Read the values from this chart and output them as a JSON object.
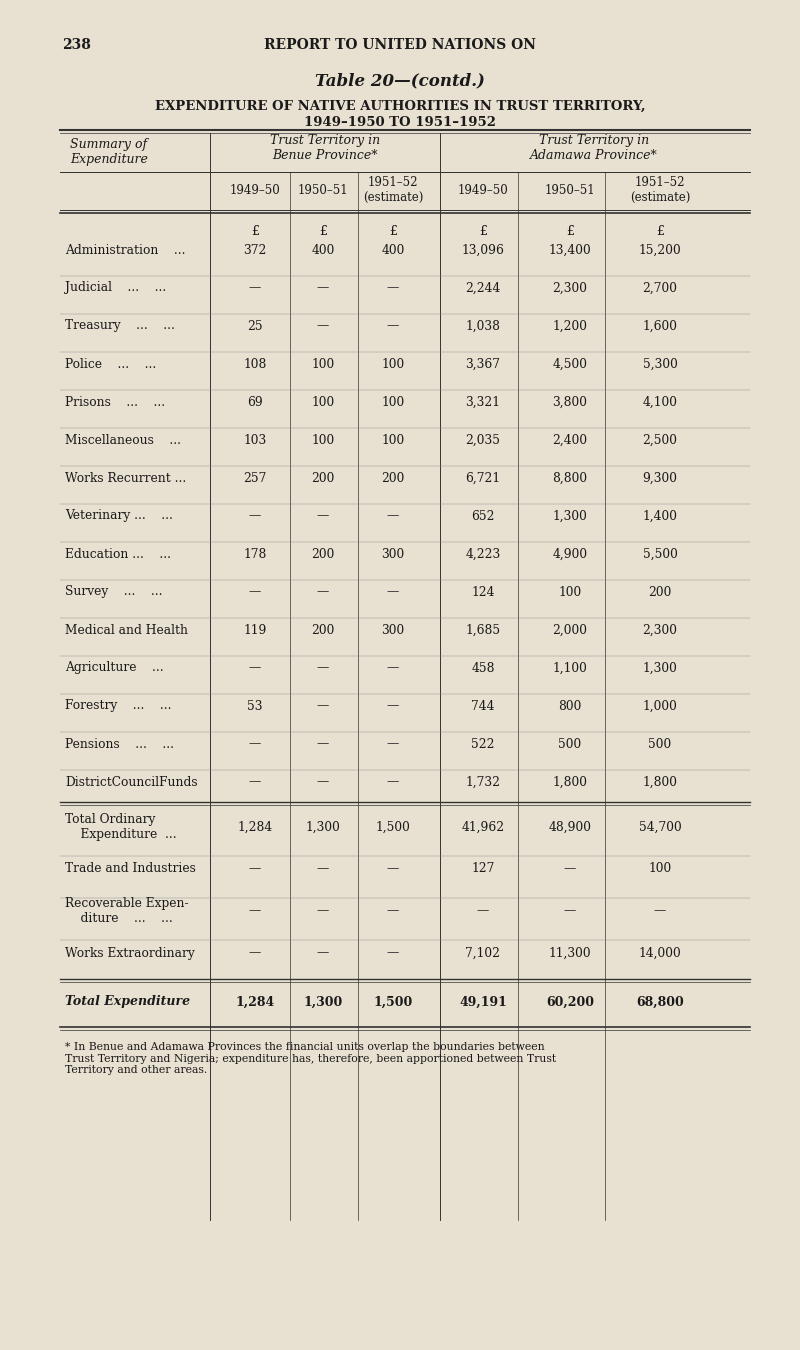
{
  "page_number": "238",
  "header_text": "REPORT TO UNITED NATIONS ON",
  "table_title": "Table 20—(contd.)",
  "subtitle1": "EXPENDITURE OF NATIVE AUTHORITIES IN TRUST TERRITORY,",
  "subtitle2": "1949–1950 TO 1951–1952",
  "col_group1": "Trust Territory in\nBenue Province*",
  "col_group2": "Trust Territory in\nAdamawa Province*",
  "row_header": "Summary of\nExpenditure",
  "col_years": [
    "1949–50",
    "1950–51",
    "1951–52\n(estimate)",
    "1949–50",
    "1950–51",
    "1951–52\n(estimate)"
  ],
  "currency_symbol": "£",
  "rows": [
    {
      "label": "Administration    ...",
      "dots": false,
      "b49": "372",
      "b50": "400",
      "b51": "400",
      "a49": "13,096",
      "a50": "13,400",
      "a51": "15,200"
    },
    {
      "label": "Judicial    ...    ...",
      "dots": false,
      "b49": "—",
      "b50": "—",
      "b51": "—",
      "a49": "2,244",
      "a50": "2,300",
      "a51": "2,700"
    },
    {
      "label": "Treasury    ...    ...",
      "dots": false,
      "b49": "25",
      "b50": "—",
      "b51": "—",
      "a49": "1,038",
      "a50": "1,200",
      "a51": "1,600"
    },
    {
      "label": "Police    ...    ...",
      "dots": false,
      "b49": "108",
      "b50": "100",
      "b51": "100",
      "a49": "3,367",
      "a50": "4,500",
      "a51": "5,300"
    },
    {
      "label": "Prisons    ...    ...",
      "dots": false,
      "b49": "69",
      "b50": "100",
      "b51": "100",
      "a49": "3,321",
      "a50": "3,800",
      "a51": "4,100"
    },
    {
      "label": "Miscellaneous    ...",
      "dots": false,
      "b49": "103",
      "b50": "100",
      "b51": "100",
      "a49": "2,035",
      "a50": "2,400",
      "a51": "2,500"
    },
    {
      "label": "Works Recurrent ...",
      "dots": false,
      "b49": "257",
      "b50": "200",
      "b51": "200",
      "a49": "6,721",
      "a50": "8,800",
      "a51": "9,300"
    },
    {
      "label": "Veterinary ...    ...",
      "dots": false,
      "b49": "—",
      "b50": "—",
      "b51": "—",
      "a49": "652",
      "a50": "1,300",
      "a51": "1,400"
    },
    {
      "label": "Education ...    ...",
      "dots": false,
      "b49": "178",
      "b50": "200",
      "b51": "300",
      "a49": "4,223",
      "a50": "4,900",
      "a51": "5,500"
    },
    {
      "label": "Survey    ...    ...",
      "dots": false,
      "b49": "—",
      "b50": "—",
      "b51": "—",
      "a49": "124",
      "a50": "100",
      "a51": "200"
    },
    {
      "label": "Medical and Health",
      "dots": false,
      "b49": "119",
      "b50": "200",
      "b51": "300",
      "a49": "1,685",
      "a50": "2,000",
      "a51": "2,300"
    },
    {
      "label": "Agriculture    ...",
      "dots": false,
      "b49": "—",
      "b50": "—",
      "b51": "—",
      "a49": "458",
      "a50": "1,100",
      "a51": "1,300"
    },
    {
      "label": "Forestry    ...    ...",
      "dots": false,
      "b49": "53",
      "b50": "—",
      "b51": "—",
      "a49": "744",
      "a50": "800",
      "a51": "1,000"
    },
    {
      "label": "Pensions    ...    ...",
      "dots": false,
      "b49": "—",
      "b50": "—",
      "b51": "—",
      "a49": "522",
      "a50": "500",
      "a51": "500"
    },
    {
      "label": "DistrictCouncilFunds",
      "dots": false,
      "b49": "—",
      "b50": "—",
      "b51": "—",
      "a49": "1,732",
      "a50": "1,800",
      "a51": "1,800"
    }
  ],
  "subtotal_rows": [
    {
      "label": "Total Ordinary\n    Expenditure  ...",
      "b49": "1,284",
      "b50": "1,300",
      "b51": "1,500",
      "a49": "41,962",
      "a50": "48,900",
      "a51": "54,700"
    },
    {
      "label": "Trade and Industries",
      "b49": "—",
      "b50": "—",
      "b51": "—",
      "a49": "127",
      "a50": "—",
      "a51": "100"
    },
    {
      "label": "Recoverable Expen-\n    diture    ...    ...",
      "b49": "—",
      "b50": "—",
      "b51": "—",
      "a49": "—",
      "a50": "—",
      "a51": "—"
    },
    {
      "label": "Works Extraordinary",
      "b49": "—",
      "b50": "—",
      "b51": "—",
      "a49": "7,102",
      "a50": "11,300",
      "a51": "14,000"
    }
  ],
  "total_row": {
    "label": "Total Expenditure",
    "b49": "1,284",
    "b50": "1,300",
    "b51": "1,500",
    "a49": "49,191",
    "a50": "60,200",
    "a51": "68,800"
  },
  "footnote": "* In Benue and Adamawa Provinces the financial units overlap the boundaries between\nTrust Territory and Nigeria; expenditure has, therefore, been apportioned between Trust\nTerritory and other areas.",
  "bg_color": "#e8e0d0",
  "text_color": "#1a1a1a",
  "line_color": "#333333"
}
